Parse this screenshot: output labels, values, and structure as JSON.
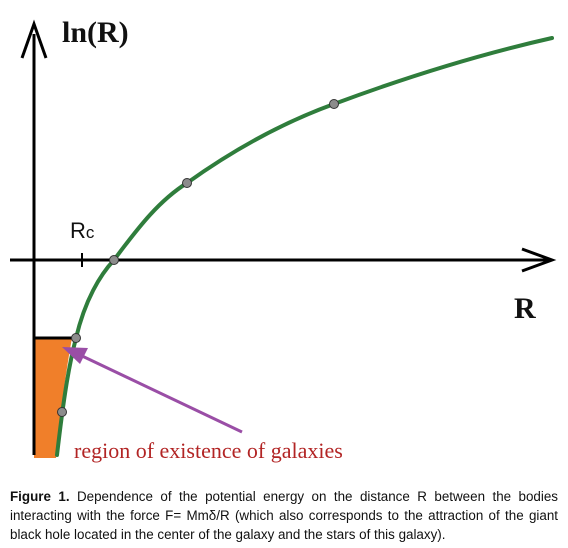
{
  "diagram": {
    "y_axis_label": "ln(R)",
    "x_axis_label": "R",
    "marker_label_main": "R",
    "marker_label_sub": "c",
    "region_label": "region of existence of galaxies",
    "colors": {
      "curve": "#2f7d3c",
      "axes": "#000000",
      "region_fill": "#f07f2a",
      "arrow": "#9a4ea6",
      "region_text": "#b22424",
      "points": "#8c8c8c"
    }
  },
  "caption": {
    "label": "Figure 1.",
    "text": " Dependence of the potential energy on the distance R between the bodies interacting with the force F= Mmδ/R (which also corresponds to the attraction of the giant black hole located in the center of the galaxy and the stars of this galaxy)."
  }
}
